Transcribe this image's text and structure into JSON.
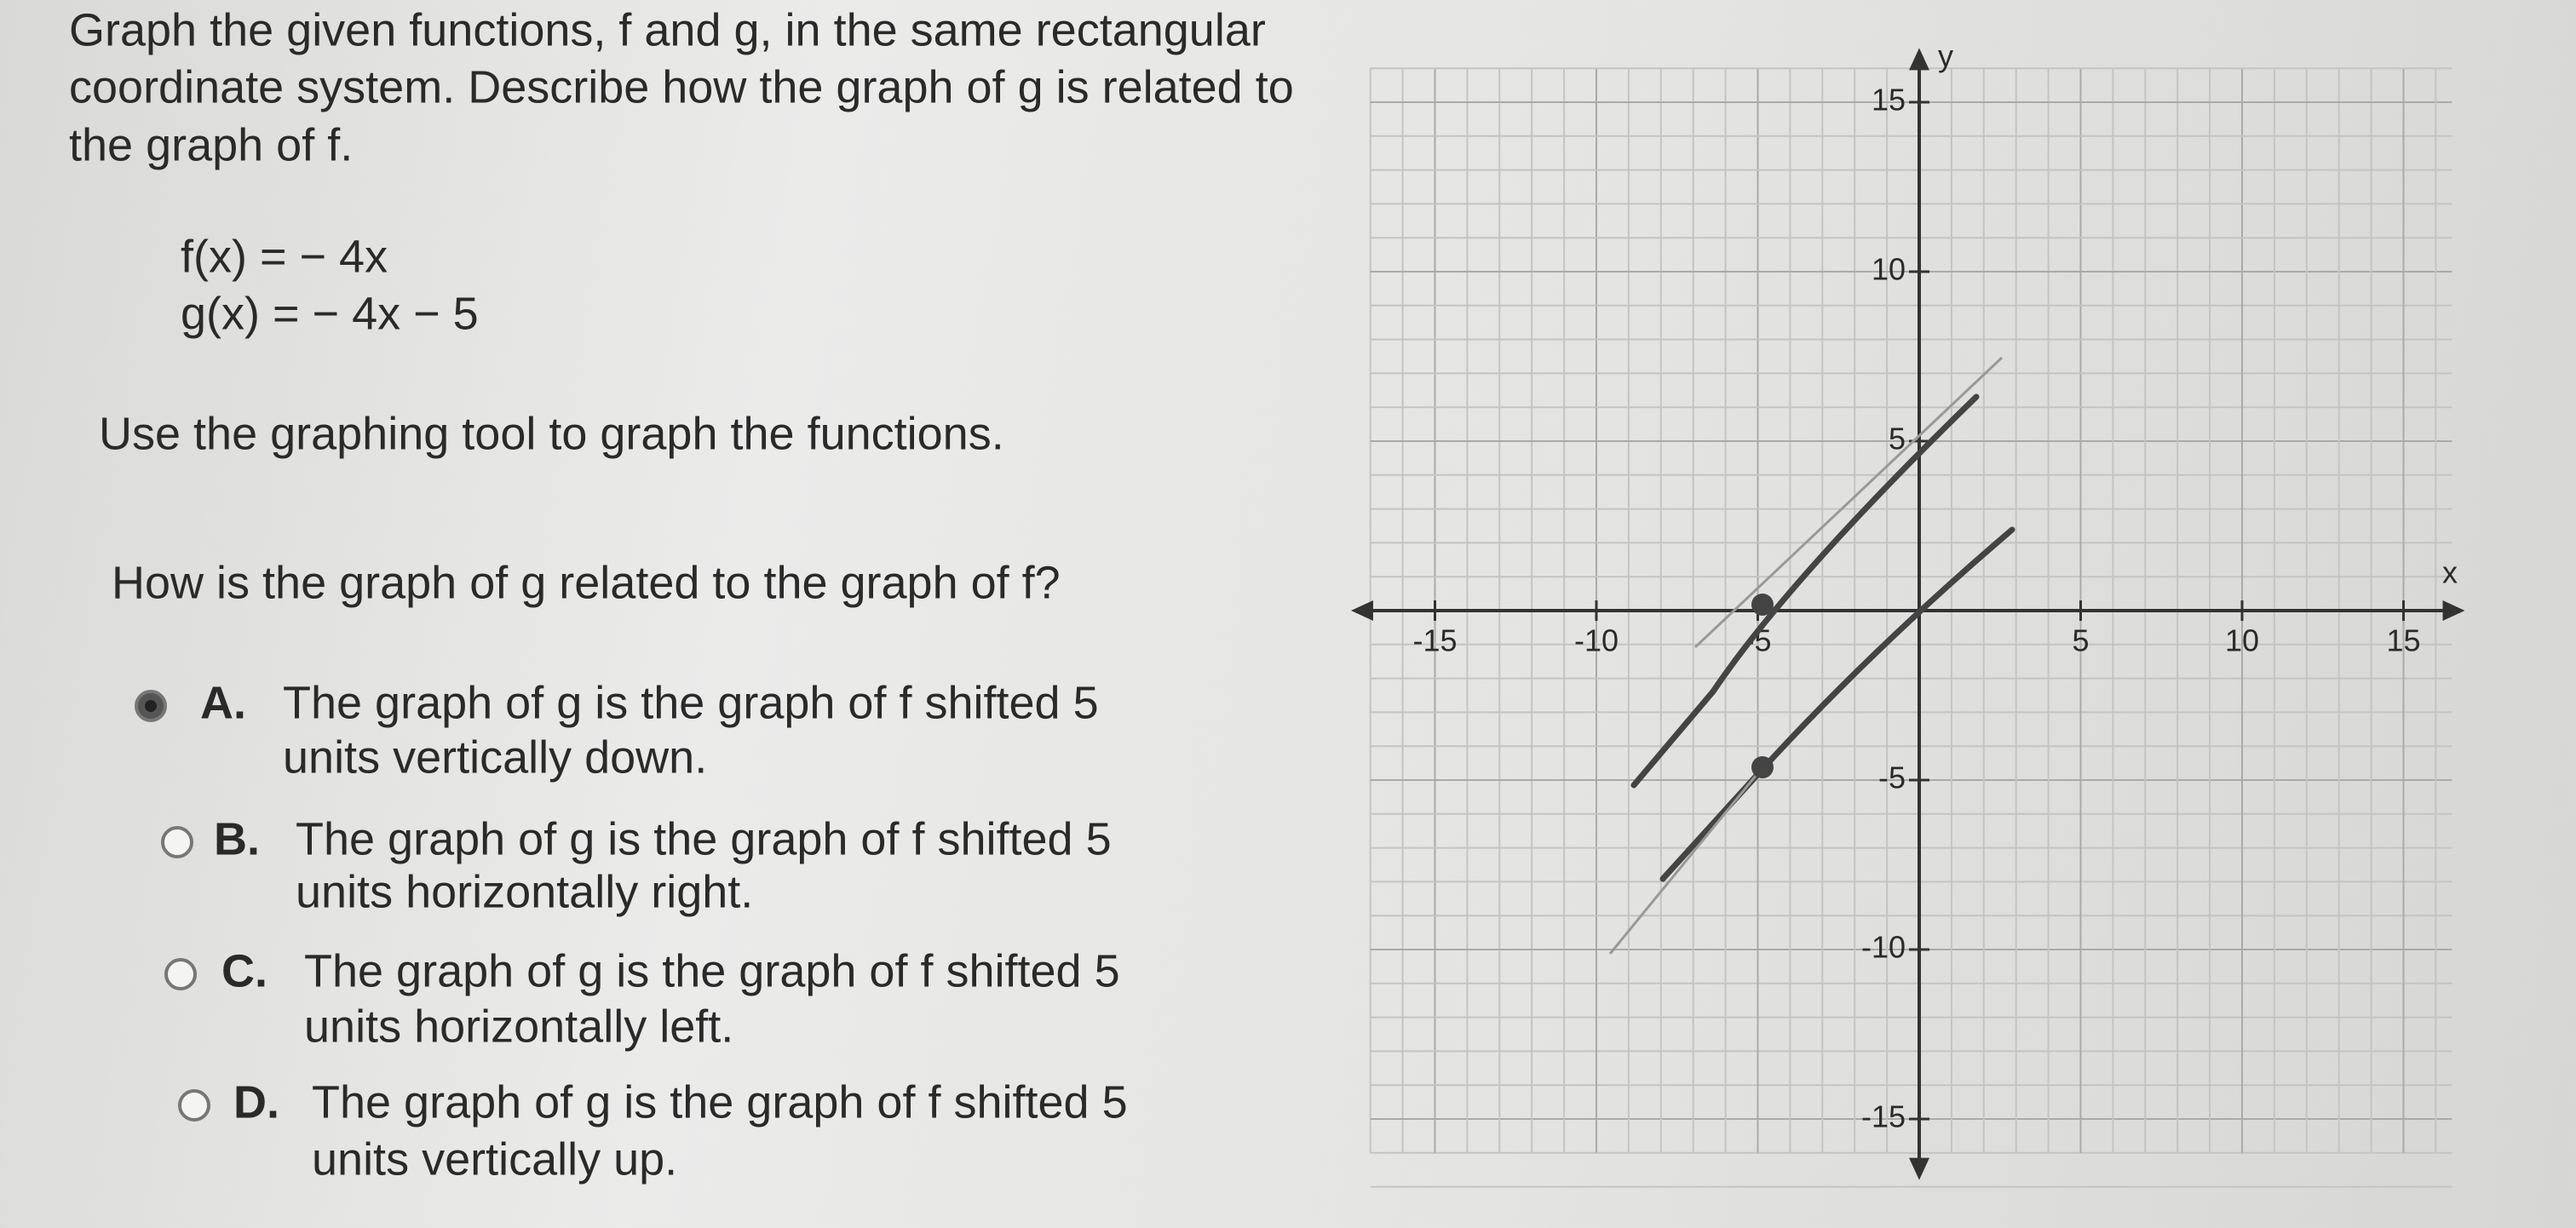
{
  "question": {
    "lines": [
      "Graph the given functions, f and g, in the same rectangular",
      "coordinate system. Describe how the graph of g is related to",
      "the graph of f."
    ]
  },
  "functions": [
    "f(x) = − 4x",
    "g(x) = − 4x − 5"
  ],
  "instruction": "Use the graphing tool to graph the functions.",
  "prompt": "How is the graph of g related to the graph of f?",
  "options": [
    {
      "letter": "A.",
      "lines": [
        "The graph of g is the graph of f shifted 5",
        "units vertically down."
      ],
      "selected": true
    },
    {
      "letter": "B.",
      "lines": [
        "The graph of g is the graph of f shifted 5",
        "units horizontally right."
      ],
      "selected": false
    },
    {
      "letter": "C.",
      "lines": [
        "The graph of g is the graph of f shifted 5",
        "units horizontally left."
      ],
      "selected": false
    },
    {
      "letter": "D.",
      "lines": [
        "The graph of g is the graph of f shifted 5",
        "units vertically up."
      ],
      "selected": false
    }
  ],
  "graph": {
    "x_label": "x",
    "y_label": "y",
    "xticks": [
      -15,
      -10,
      -5,
      5,
      10,
      15
    ],
    "yticks": [
      15,
      10,
      5,
      -5,
      -10,
      -15
    ]
  }
}
